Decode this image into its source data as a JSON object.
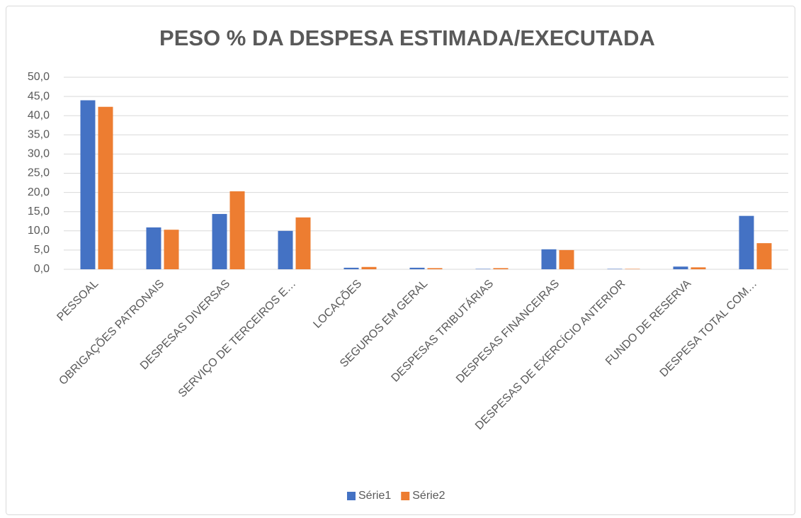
{
  "chart_data": {
    "type": "bar",
    "title": "PESO % DA DESPESA ESTIMADA/EXECUTADA",
    "categories": [
      "PESSOAL",
      "OBRIGAÇÕES PATRONAIS",
      "DESPESAS DIVERSAS",
      "SERVIÇO DE TERCEIROS E…",
      "LOCAÇÕES",
      "SEGUROS EM GERAL",
      "DESPESAS TRIBUTÁRIAS",
      "DESPESAS FINANCEIRAS",
      "DESPESAS DE EXERCÍCIO ANTERIOR",
      "FUNDO DE RESERVA",
      "DESPESA TOTAL COM…"
    ],
    "series": [
      {
        "name": "Série1",
        "color": "#4472c4",
        "values": [
          44.0,
          10.9,
          14.4,
          10.0,
          0.4,
          0.4,
          0.1,
          5.2,
          0.1,
          0.7,
          13.9
        ]
      },
      {
        "name": "Série2",
        "color": "#ed7d31",
        "values": [
          42.3,
          10.3,
          20.3,
          13.5,
          0.6,
          0.3,
          0.3,
          5.0,
          0.1,
          0.5,
          6.8
        ]
      }
    ],
    "ylim": [
      0,
      50
    ],
    "yticks": [
      {
        "value": 0,
        "label": "0,0"
      },
      {
        "value": 5,
        "label": "5,0"
      },
      {
        "value": 10,
        "label": "10,0"
      },
      {
        "value": 15,
        "label": "15,0"
      },
      {
        "value": 20,
        "label": "20,0"
      },
      {
        "value": 25,
        "label": "25,0"
      },
      {
        "value": 30,
        "label": "30,0"
      },
      {
        "value": 35,
        "label": "35,0"
      },
      {
        "value": 40,
        "label": "40,0"
      },
      {
        "value": 45,
        "label": "45,0"
      },
      {
        "value": 50,
        "label": "50,0"
      }
    ],
    "grid": true,
    "legend": "bottom"
  }
}
